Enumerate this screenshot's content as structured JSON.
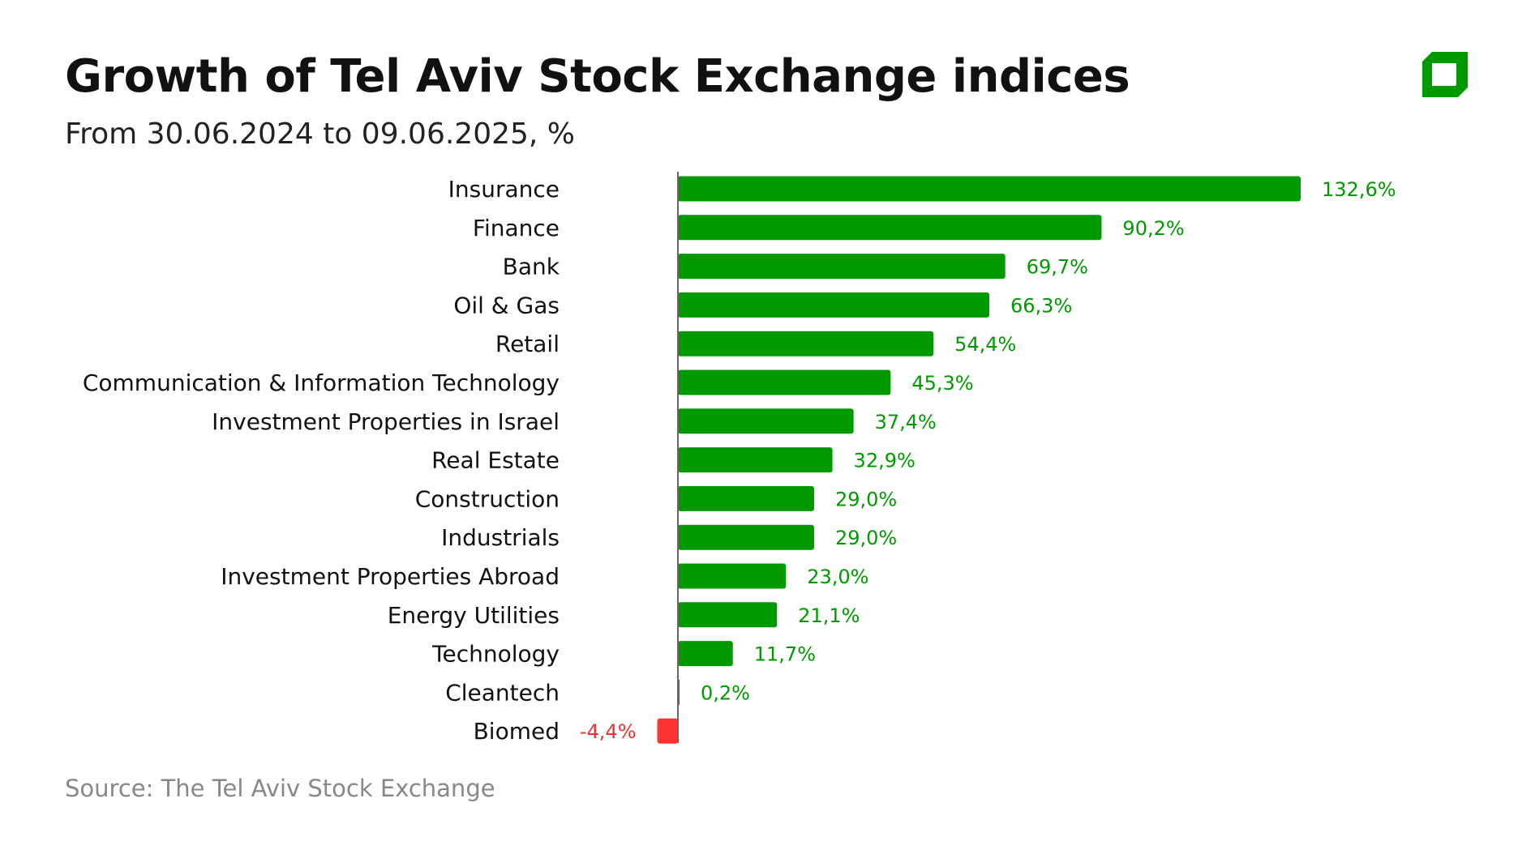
{
  "title": "Growth of Tel Aviv Stock Exchange indices",
  "subtitle": "From 30.06.2024 to 09.06.2025, %",
  "source": "Source: The Tel Aviv Stock Exchange",
  "colors": {
    "positive": "#009900",
    "negative": "#ff3333",
    "axis": "#666666",
    "logo": "#009900"
  },
  "chart_data": {
    "type": "bar",
    "orientation": "horizontal",
    "categories": [
      "Insurance",
      "Finance",
      "Bank",
      "Oil & Gas",
      "Retail",
      "Communication & Information Technology",
      "Investment Properties in Israel",
      "Real Estate",
      "Construction",
      "Industrials",
      "Investment Properties Abroad",
      "Energy Utilities",
      "Technology",
      "Cleantech",
      "Biomed"
    ],
    "values": [
      132.6,
      90.2,
      69.7,
      66.3,
      54.4,
      45.3,
      37.4,
      32.9,
      29.0,
      29.0,
      23.0,
      21.1,
      11.7,
      0.2,
      -4.4
    ],
    "labels": [
      "132,6%",
      "90,2%",
      "69,7%",
      "66,3%",
      "54,4%",
      "45,3%",
      "37,4%",
      "32,9%",
      "29,0%",
      "29,0%",
      "23,0%",
      "21,1%",
      "11,7%",
      "0,2%",
      "-4,4%"
    ],
    "grid": false,
    "legend": "none"
  }
}
